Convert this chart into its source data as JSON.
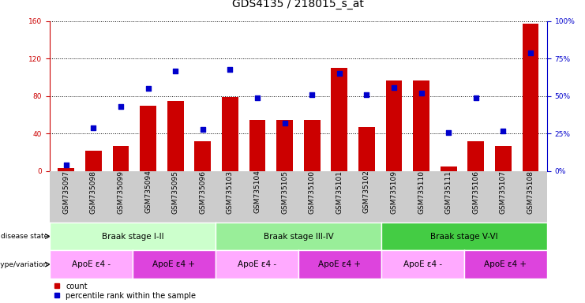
{
  "title": "GDS4135 / 218015_s_at",
  "samples": [
    "GSM735097",
    "GSM735098",
    "GSM735099",
    "GSM735094",
    "GSM735095",
    "GSM735096",
    "GSM735103",
    "GSM735104",
    "GSM735105",
    "GSM735100",
    "GSM735101",
    "GSM735102",
    "GSM735109",
    "GSM735110",
    "GSM735111",
    "GSM735106",
    "GSM735107",
    "GSM735108"
  ],
  "counts": [
    3,
    22,
    27,
    70,
    75,
    32,
    79,
    55,
    55,
    55,
    110,
    47,
    97,
    97,
    5,
    32,
    27,
    157
  ],
  "percentile": [
    4,
    29,
    43,
    55,
    67,
    28,
    68,
    49,
    32,
    51,
    65,
    51,
    56,
    52,
    26,
    49,
    27,
    79
  ],
  "disease_state_groups": [
    {
      "label": "Braak stage I-II",
      "start": 0,
      "end": 6,
      "color": "#ccffcc"
    },
    {
      "label": "Braak stage III-IV",
      "start": 6,
      "end": 12,
      "color": "#99ee99"
    },
    {
      "label": "Braak stage V-VI",
      "start": 12,
      "end": 18,
      "color": "#44cc44"
    }
  ],
  "genotype_groups": [
    {
      "label": "ApoE ε4 -",
      "start": 0,
      "end": 3,
      "color": "#ffaaff"
    },
    {
      "label": "ApoE ε4 +",
      "start": 3,
      "end": 6,
      "color": "#dd44dd"
    },
    {
      "label": "ApoE ε4 -",
      "start": 6,
      "end": 9,
      "color": "#ffaaff"
    },
    {
      "label": "ApoE ε4 +",
      "start": 9,
      "end": 12,
      "color": "#dd44dd"
    },
    {
      "label": "ApoE ε4 -",
      "start": 12,
      "end": 15,
      "color": "#ffaaff"
    },
    {
      "label": "ApoE ε4 +",
      "start": 15,
      "end": 18,
      "color": "#dd44dd"
    }
  ],
  "ylim_left": [
    0,
    160
  ],
  "ylim_right": [
    0,
    100
  ],
  "yticks_left": [
    0,
    40,
    80,
    120,
    160
  ],
  "yticks_right": [
    0,
    25,
    50,
    75,
    100
  ],
  "bar_color": "#cc0000",
  "dot_color": "#0000cc",
  "background_color": "#ffffff",
  "xtick_bg_color": "#cccccc",
  "title_fontsize": 10,
  "tick_fontsize": 6.5,
  "annot_fontsize": 7.5,
  "legend_fontsize": 7
}
